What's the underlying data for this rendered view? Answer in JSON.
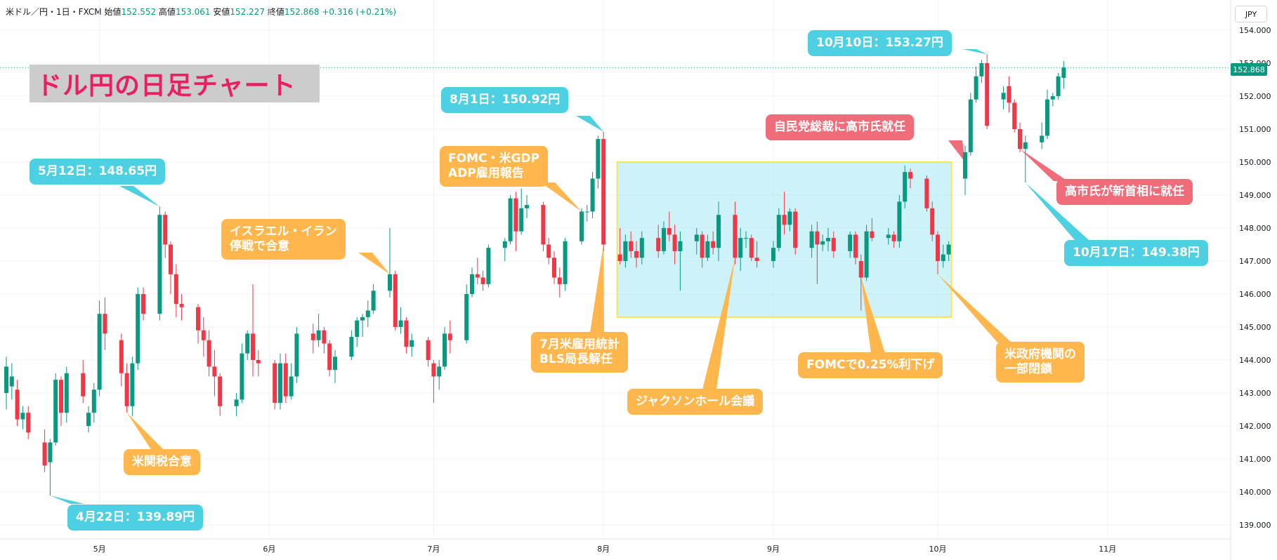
{
  "header": {
    "symbol": "米ドル／円・1日・FXCM",
    "open_label": "始値",
    "open": "152.552",
    "high_label": "高値",
    "high": "153.061",
    "low_label": "安値",
    "low": "152.227",
    "close_label": "終値",
    "close": "152.868",
    "change": "+0.316 (+0.21%)"
  },
  "currency_button": "JPY",
  "title": "ドル円の日足チャート",
  "colors": {
    "up": "#089981",
    "down": "#f23645",
    "cyan": "#4dd0e1",
    "orange": "#ffb74d",
    "red": "#f06c78",
    "title": "#e91e63"
  },
  "callouts": {
    "apr22": "4月22日：139.89円",
    "may12": "5月12日：148.65円",
    "aug1": "8月1日：150.92円",
    "oct10": "10月10日：153.27円",
    "oct17": "10月17日：149.38円",
    "tariff": "米関税合意",
    "israel": [
      "イスラエル・イラン",
      "停戦で合意"
    ],
    "fomc_gdp": [
      "FOMC・米GDP",
      "ADP雇用報告"
    ],
    "jobs": [
      "7月米雇用統計",
      "BLS局長解任"
    ],
    "jackson": "ジャクソンホール会議",
    "fomc_cut": "FOMCで0.25%利下げ",
    "shutdown": [
      "米政府機関の",
      "一部閉鎖"
    ],
    "ldp": "自民党総裁に高市氏就任",
    "pm": "高市氏が新首相に就任"
  },
  "last_price_tag": "152.868",
  "chart_data": {
    "type": "candlestick",
    "title": "ドル円の日足チャート",
    "ylim": [
      138.8,
      154.6
    ],
    "y_ticks": [
      "139.000",
      "140.000",
      "141.000",
      "142.000",
      "143.000",
      "144.000",
      "145.000",
      "146.000",
      "147.000",
      "148.000",
      "149.000",
      "150.000",
      "151.000",
      "152.000",
      "153.000",
      "154.000"
    ],
    "x_ticks": [
      "5月",
      "6月",
      "7月",
      "8月",
      "9月",
      "10月",
      "11月"
    ],
    "last_price": 152.868,
    "shaded_range": {
      "from_date": "2025-08-04",
      "to_date": "2025-10-03",
      "low": 145.3,
      "high": 150.0
    },
    "candles": [
      {
        "d": "2025-04-14",
        "o": 143.0,
        "h": 144.1,
        "l": 142.5,
        "c": 143.8
      },
      {
        "d": "2025-04-15",
        "o": 143.2,
        "h": 143.9,
        "l": 142.8,
        "c": 143.5
      },
      {
        "d": "2025-04-16",
        "o": 143.1,
        "h": 143.4,
        "l": 142.0,
        "c": 142.2
      },
      {
        "d": "2025-04-17",
        "o": 142.2,
        "h": 142.6,
        "l": 141.9,
        "c": 142.4
      },
      {
        "d": "2025-04-18",
        "o": 142.4,
        "h": 142.6,
        "l": 141.6,
        "c": 141.8
      },
      {
        "d": "2025-04-21",
        "o": 141.5,
        "h": 141.9,
        "l": 140.6,
        "c": 140.8
      },
      {
        "d": "2025-04-22",
        "o": 140.9,
        "h": 141.6,
        "l": 139.89,
        "c": 141.5
      },
      {
        "d": "2025-04-23",
        "o": 141.5,
        "h": 143.6,
        "l": 141.4,
        "c": 143.4
      },
      {
        "d": "2025-04-24",
        "o": 143.4,
        "h": 143.5,
        "l": 142.0,
        "c": 142.4
      },
      {
        "d": "2025-04-25",
        "o": 142.4,
        "h": 143.8,
        "l": 142.1,
        "c": 143.6
      },
      {
        "d": "2025-04-28",
        "o": 143.6,
        "h": 144.0,
        "l": 142.7,
        "c": 142.9
      },
      {
        "d": "2025-04-29",
        "o": 142.0,
        "h": 142.6,
        "l": 141.8,
        "c": 142.4
      },
      {
        "d": "2025-04-30",
        "o": 142.4,
        "h": 143.3,
        "l": 142.1,
        "c": 143.1
      },
      {
        "d": "2025-05-01",
        "o": 143.1,
        "h": 145.8,
        "l": 142.9,
        "c": 145.4
      },
      {
        "d": "2025-05-02",
        "o": 145.4,
        "h": 145.9,
        "l": 144.3,
        "c": 144.8
      },
      {
        "d": "2025-05-05",
        "o": 144.6,
        "h": 144.8,
        "l": 143.2,
        "c": 143.6
      },
      {
        "d": "2025-05-06",
        "o": 143.6,
        "h": 143.9,
        "l": 142.4,
        "c": 142.6
      },
      {
        "d": "2025-05-07",
        "o": 142.6,
        "h": 144.1,
        "l": 142.3,
        "c": 143.9
      },
      {
        "d": "2025-05-08",
        "o": 143.9,
        "h": 146.2,
        "l": 143.7,
        "c": 146.0
      },
      {
        "d": "2025-05-09",
        "o": 146.0,
        "h": 146.2,
        "l": 145.2,
        "c": 145.4
      },
      {
        "d": "2025-05-12",
        "o": 145.4,
        "h": 148.65,
        "l": 145.2,
        "c": 148.4
      },
      {
        "d": "2025-05-13",
        "o": 148.4,
        "h": 148.5,
        "l": 147.1,
        "c": 147.5
      },
      {
        "d": "2025-05-14",
        "o": 147.5,
        "h": 147.6,
        "l": 146.0,
        "c": 146.6
      },
      {
        "d": "2025-05-15",
        "o": 146.6,
        "h": 146.9,
        "l": 145.3,
        "c": 145.7
      },
      {
        "d": "2025-05-16",
        "o": 145.7,
        "h": 146.0,
        "l": 145.2,
        "c": 145.6
      },
      {
        "d": "2025-05-19",
        "o": 145.6,
        "h": 145.7,
        "l": 144.5,
        "c": 144.9
      },
      {
        "d": "2025-05-20",
        "o": 144.9,
        "h": 145.3,
        "l": 144.1,
        "c": 144.6
      },
      {
        "d": "2025-05-21",
        "o": 144.6,
        "h": 144.9,
        "l": 143.5,
        "c": 143.8
      },
      {
        "d": "2025-05-22",
        "o": 143.8,
        "h": 144.3,
        "l": 142.9,
        "c": 143.5
      },
      {
        "d": "2025-05-23",
        "o": 143.5,
        "h": 143.6,
        "l": 142.3,
        "c": 142.6
      },
      {
        "d": "2025-05-26",
        "o": 142.6,
        "h": 143.0,
        "l": 142.3,
        "c": 142.8
      },
      {
        "d": "2025-05-27",
        "o": 142.8,
        "h": 144.5,
        "l": 142.7,
        "c": 144.2
      },
      {
        "d": "2025-05-28",
        "o": 144.2,
        "h": 144.9,
        "l": 144.0,
        "c": 144.8
      },
      {
        "d": "2025-05-29",
        "o": 144.8,
        "h": 146.3,
        "l": 143.5,
        "c": 144.0
      },
      {
        "d": "2025-05-30",
        "o": 144.0,
        "h": 144.3,
        "l": 143.5,
        "c": 143.9
      },
      {
        "d": "2025-06-02",
        "o": 143.9,
        "h": 144.0,
        "l": 142.5,
        "c": 142.7
      },
      {
        "d": "2025-06-03",
        "o": 142.7,
        "h": 144.2,
        "l": 142.5,
        "c": 143.9
      },
      {
        "d": "2025-06-04",
        "o": 143.9,
        "h": 144.2,
        "l": 142.7,
        "c": 142.9
      },
      {
        "d": "2025-06-05",
        "o": 142.9,
        "h": 143.9,
        "l": 142.8,
        "c": 143.5
      },
      {
        "d": "2025-06-06",
        "o": 143.5,
        "h": 145.0,
        "l": 143.3,
        "c": 144.8
      },
      {
        "d": "2025-06-09",
        "o": 144.8,
        "h": 145.1,
        "l": 144.2,
        "c": 144.6
      },
      {
        "d": "2025-06-10",
        "o": 144.6,
        "h": 145.4,
        "l": 144.4,
        "c": 144.9
      },
      {
        "d": "2025-06-11",
        "o": 144.9,
        "h": 145.0,
        "l": 144.2,
        "c": 144.5
      },
      {
        "d": "2025-06-12",
        "o": 144.5,
        "h": 144.6,
        "l": 143.5,
        "c": 143.7
      },
      {
        "d": "2025-06-13",
        "o": 143.7,
        "h": 144.3,
        "l": 143.3,
        "c": 144.1
      },
      {
        "d": "2025-06-16",
        "o": 144.1,
        "h": 144.9,
        "l": 144.0,
        "c": 144.7
      },
      {
        "d": "2025-06-17",
        "o": 144.7,
        "h": 145.3,
        "l": 144.4,
        "c": 145.2
      },
      {
        "d": "2025-06-18",
        "o": 145.2,
        "h": 145.4,
        "l": 144.7,
        "c": 145.3
      },
      {
        "d": "2025-06-19",
        "o": 145.3,
        "h": 145.8,
        "l": 145.0,
        "c": 145.5
      },
      {
        "d": "2025-06-20",
        "o": 145.5,
        "h": 146.3,
        "l": 145.4,
        "c": 146.1
      },
      {
        "d": "2025-06-23",
        "o": 146.1,
        "h": 148.0,
        "l": 145.9,
        "c": 146.6
      },
      {
        "d": "2025-06-24",
        "o": 146.6,
        "h": 146.7,
        "l": 144.9,
        "c": 145.0
      },
      {
        "d": "2025-06-25",
        "o": 145.0,
        "h": 145.6,
        "l": 144.8,
        "c": 145.2
      },
      {
        "d": "2025-06-26",
        "o": 145.2,
        "h": 145.3,
        "l": 144.2,
        "c": 144.4
      },
      {
        "d": "2025-06-27",
        "o": 144.4,
        "h": 144.8,
        "l": 144.1,
        "c": 144.6
      },
      {
        "d": "2025-06-30",
        "o": 144.6,
        "h": 144.7,
        "l": 143.8,
        "c": 144.0
      },
      {
        "d": "2025-07-01",
        "o": 143.9,
        "h": 144.0,
        "l": 142.7,
        "c": 143.5
      },
      {
        "d": "2025-07-02",
        "o": 143.5,
        "h": 144.0,
        "l": 143.1,
        "c": 143.8
      },
      {
        "d": "2025-07-03",
        "o": 143.8,
        "h": 145.0,
        "l": 143.7,
        "c": 144.8
      },
      {
        "d": "2025-07-04",
        "o": 144.8,
        "h": 145.2,
        "l": 144.2,
        "c": 144.6
      },
      {
        "d": "2025-07-07",
        "o": 144.6,
        "h": 146.3,
        "l": 144.5,
        "c": 146.0
      },
      {
        "d": "2025-07-08",
        "o": 146.0,
        "h": 146.8,
        "l": 145.9,
        "c": 146.6
      },
      {
        "d": "2025-07-09",
        "o": 146.6,
        "h": 147.1,
        "l": 146.3,
        "c": 146.5
      },
      {
        "d": "2025-07-10",
        "o": 146.5,
        "h": 146.7,
        "l": 146.1,
        "c": 146.3
      },
      {
        "d": "2025-07-11",
        "o": 146.3,
        "h": 147.5,
        "l": 146.2,
        "c": 147.4
      },
      {
        "d": "2025-07-14",
        "o": 147.4,
        "h": 147.7,
        "l": 147.0,
        "c": 147.6
      },
      {
        "d": "2025-07-15",
        "o": 147.6,
        "h": 149.0,
        "l": 147.5,
        "c": 148.9
      },
      {
        "d": "2025-07-16",
        "o": 148.9,
        "h": 149.1,
        "l": 147.3,
        "c": 147.9
      },
      {
        "d": "2025-07-17",
        "o": 147.9,
        "h": 149.2,
        "l": 147.8,
        "c": 148.6
      },
      {
        "d": "2025-07-18",
        "o": 148.6,
        "h": 149.0,
        "l": 148.3,
        "c": 148.7
      },
      {
        "d": "2025-07-21",
        "o": 148.7,
        "h": 148.8,
        "l": 147.3,
        "c": 147.5
      },
      {
        "d": "2025-07-22",
        "o": 147.5,
        "h": 147.7,
        "l": 146.9,
        "c": 147.1
      },
      {
        "d": "2025-07-23",
        "o": 147.1,
        "h": 147.3,
        "l": 146.3,
        "c": 146.5
      },
      {
        "d": "2025-07-24",
        "o": 146.5,
        "h": 146.8,
        "l": 145.9,
        "c": 146.3
      },
      {
        "d": "2025-07-25",
        "o": 146.3,
        "h": 147.7,
        "l": 146.1,
        "c": 147.6
      },
      {
        "d": "2025-07-28",
        "o": 147.6,
        "h": 148.6,
        "l": 147.5,
        "c": 148.5
      },
      {
        "d": "2025-07-29",
        "o": 148.5,
        "h": 148.7,
        "l": 148.2,
        "c": 148.5
      },
      {
        "d": "2025-07-30",
        "o": 148.5,
        "h": 149.7,
        "l": 148.3,
        "c": 149.5
      },
      {
        "d": "2025-07-31",
        "o": 149.5,
        "h": 150.8,
        "l": 149.2,
        "c": 150.7
      },
      {
        "d": "2025-08-01",
        "o": 150.7,
        "h": 150.92,
        "l": 147.3,
        "c": 147.5
      },
      {
        "d": "2025-08-04",
        "o": 147.2,
        "h": 148.0,
        "l": 146.9,
        "c": 147.0
      },
      {
        "d": "2025-08-05",
        "o": 147.0,
        "h": 147.8,
        "l": 146.8,
        "c": 147.6
      },
      {
        "d": "2025-08-06",
        "o": 147.6,
        "h": 147.9,
        "l": 147.1,
        "c": 147.3
      },
      {
        "d": "2025-08-07",
        "o": 147.3,
        "h": 147.6,
        "l": 146.8,
        "c": 147.1
      },
      {
        "d": "2025-08-08",
        "o": 147.1,
        "h": 147.9,
        "l": 146.9,
        "c": 147.7
      },
      {
        "d": "2025-08-11",
        "o": 147.7,
        "h": 148.1,
        "l": 147.1,
        "c": 147.3
      },
      {
        "d": "2025-08-12",
        "o": 147.3,
        "h": 148.2,
        "l": 147.2,
        "c": 148.0
      },
      {
        "d": "2025-08-13",
        "o": 148.0,
        "h": 148.5,
        "l": 147.6,
        "c": 147.8
      },
      {
        "d": "2025-08-14",
        "o": 147.8,
        "h": 148.1,
        "l": 146.9,
        "c": 147.3
      },
      {
        "d": "2025-08-15",
        "o": 147.3,
        "h": 147.9,
        "l": 146.1,
        "c": 147.6
      },
      {
        "d": "2025-08-18",
        "o": 147.6,
        "h": 148.0,
        "l": 147.2,
        "c": 147.8
      },
      {
        "d": "2025-08-19",
        "o": 147.8,
        "h": 147.9,
        "l": 146.8,
        "c": 147.1
      },
      {
        "d": "2025-08-20",
        "o": 147.1,
        "h": 147.8,
        "l": 147.0,
        "c": 147.6
      },
      {
        "d": "2025-08-21",
        "o": 147.6,
        "h": 147.9,
        "l": 147.2,
        "c": 147.4
      },
      {
        "d": "2025-08-22",
        "o": 147.4,
        "h": 148.8,
        "l": 147.0,
        "c": 148.4
      },
      {
        "d": "2025-08-25",
        "o": 148.4,
        "h": 148.8,
        "l": 146.9,
        "c": 147.1
      },
      {
        "d": "2025-08-26",
        "o": 147.1,
        "h": 148.0,
        "l": 146.7,
        "c": 147.7
      },
      {
        "d": "2025-08-27",
        "o": 147.7,
        "h": 147.9,
        "l": 147.4,
        "c": 147.7
      },
      {
        "d": "2025-08-28",
        "o": 147.7,
        "h": 147.8,
        "l": 147.0,
        "c": 147.1
      },
      {
        "d": "2025-08-29",
        "o": 147.1,
        "h": 147.6,
        "l": 146.8,
        "c": 147.0
      },
      {
        "d": "2025-09-01",
        "o": 147.0,
        "h": 147.6,
        "l": 146.8,
        "c": 147.4
      },
      {
        "d": "2025-09-02",
        "o": 147.4,
        "h": 148.6,
        "l": 147.3,
        "c": 148.4
      },
      {
        "d": "2025-09-03",
        "o": 148.4,
        "h": 149.1,
        "l": 147.8,
        "c": 148.1
      },
      {
        "d": "2025-09-04",
        "o": 148.1,
        "h": 148.6,
        "l": 147.9,
        "c": 148.5
      },
      {
        "d": "2025-09-05",
        "o": 148.5,
        "h": 148.6,
        "l": 147.2,
        "c": 147.4
      },
      {
        "d": "2025-09-08",
        "o": 147.4,
        "h": 148.1,
        "l": 147.1,
        "c": 147.9
      },
      {
        "d": "2025-09-09",
        "o": 147.9,
        "h": 148.2,
        "l": 146.3,
        "c": 147.5
      },
      {
        "d": "2025-09-10",
        "o": 147.5,
        "h": 147.8,
        "l": 147.3,
        "c": 147.6
      },
      {
        "d": "2025-09-11",
        "o": 147.6,
        "h": 148.0,
        "l": 147.3,
        "c": 147.7
      },
      {
        "d": "2025-09-12",
        "o": 147.7,
        "h": 147.9,
        "l": 147.1,
        "c": 147.3
      },
      {
        "d": "2025-09-15",
        "o": 147.3,
        "h": 147.9,
        "l": 147.1,
        "c": 147.8
      },
      {
        "d": "2025-09-16",
        "o": 147.8,
        "h": 147.9,
        "l": 146.9,
        "c": 147.1
      },
      {
        "d": "2025-09-17",
        "o": 147.0,
        "h": 147.2,
        "l": 145.5,
        "c": 146.5
      },
      {
        "d": "2025-09-18",
        "o": 146.5,
        "h": 148.1,
        "l": 146.4,
        "c": 147.9
      },
      {
        "d": "2025-09-19",
        "o": 147.9,
        "h": 148.3,
        "l": 147.6,
        "c": 147.7
      },
      {
        "d": "2025-09-22",
        "o": 147.7,
        "h": 148.0,
        "l": 147.5,
        "c": 147.8
      },
      {
        "d": "2025-09-23",
        "o": 147.8,
        "h": 147.9,
        "l": 147.4,
        "c": 147.6
      },
      {
        "d": "2025-09-24",
        "o": 147.6,
        "h": 149.0,
        "l": 147.4,
        "c": 148.8
      },
      {
        "d": "2025-09-25",
        "o": 148.8,
        "h": 149.9,
        "l": 148.6,
        "c": 149.7
      },
      {
        "d": "2025-09-26",
        "o": 149.7,
        "h": 149.8,
        "l": 149.2,
        "c": 149.5
      },
      {
        "d": "2025-09-29",
        "o": 149.5,
        "h": 149.6,
        "l": 148.5,
        "c": 148.6
      },
      {
        "d": "2025-09-30",
        "o": 148.6,
        "h": 148.8,
        "l": 147.6,
        "c": 147.8
      },
      {
        "d": "2025-10-01",
        "o": 147.8,
        "h": 147.9,
        "l": 146.6,
        "c": 147.0
      },
      {
        "d": "2025-10-02",
        "o": 147.0,
        "h": 147.5,
        "l": 146.8,
        "c": 147.2
      },
      {
        "d": "2025-10-03",
        "o": 147.2,
        "h": 147.6,
        "l": 147.0,
        "c": 147.5
      },
      {
        "d": "2025-10-06",
        "o": 149.5,
        "h": 150.5,
        "l": 149.0,
        "c": 150.3
      },
      {
        "d": "2025-10-07",
        "o": 150.3,
        "h": 152.1,
        "l": 150.2,
        "c": 151.9
      },
      {
        "d": "2025-10-08",
        "o": 151.9,
        "h": 152.9,
        "l": 151.8,
        "c": 152.6
      },
      {
        "d": "2025-10-09",
        "o": 152.6,
        "h": 153.1,
        "l": 152.4,
        "c": 153.0
      },
      {
        "d": "2025-10-10",
        "o": 153.0,
        "h": 153.27,
        "l": 151.0,
        "c": 151.1
      },
      {
        "d": "2025-10-13",
        "o": 151.9,
        "h": 152.3,
        "l": 151.6,
        "c": 152.1
      },
      {
        "d": "2025-10-14",
        "o": 152.3,
        "h": 152.6,
        "l": 151.5,
        "c": 151.8
      },
      {
        "d": "2025-10-15",
        "o": 151.8,
        "h": 151.9,
        "l": 150.9,
        "c": 151.0
      },
      {
        "d": "2025-10-16",
        "o": 151.0,
        "h": 151.2,
        "l": 150.3,
        "c": 150.4
      },
      {
        "d": "2025-10-17",
        "o": 150.4,
        "h": 150.8,
        "l": 149.38,
        "c": 150.6
      },
      {
        "d": "2025-10-20",
        "o": 150.6,
        "h": 151.2,
        "l": 150.4,
        "c": 150.8
      },
      {
        "d": "2025-10-21",
        "o": 150.8,
        "h": 152.2,
        "l": 150.7,
        "c": 151.9
      },
      {
        "d": "2025-10-22",
        "o": 151.9,
        "h": 152.1,
        "l": 151.7,
        "c": 152.0
      },
      {
        "d": "2025-10-23",
        "o": 152.0,
        "h": 152.7,
        "l": 151.9,
        "c": 152.6
      },
      {
        "d": "2025-10-24",
        "o": 152.552,
        "h": 153.061,
        "l": 152.227,
        "c": 152.868
      }
    ]
  }
}
